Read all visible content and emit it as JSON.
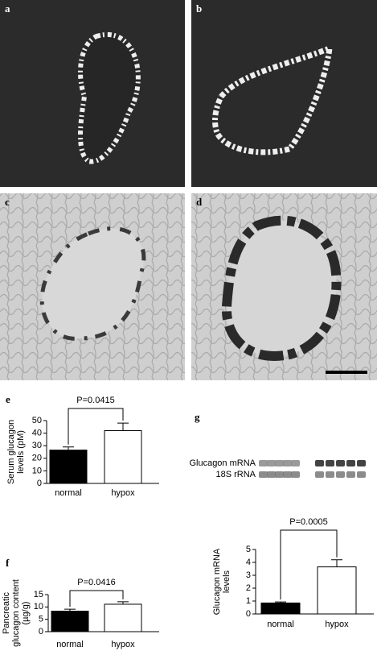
{
  "panels": {
    "labels": [
      "a",
      "b",
      "c",
      "d"
    ]
  },
  "chart_data": [
    {
      "type": "bar",
      "label": "e",
      "ylabel": [
        "Serum glucagon",
        "levels (pM)"
      ],
      "categories": [
        "normal",
        "hypox"
      ],
      "values": [
        26.5,
        42
      ],
      "errors": [
        2.5,
        6
      ],
      "colors": [
        "#000000",
        "#ffffff"
      ],
      "annotation": "P=0.0415",
      "ylim": [
        0,
        50
      ],
      "yticks": [
        0,
        10,
        20,
        30,
        40,
        50
      ]
    },
    {
      "type": "bar",
      "label": "f",
      "ylabel": [
        "Pancreatic",
        "glucagon content",
        "(µg/g)"
      ],
      "categories": [
        "normal",
        "hypox"
      ],
      "values": [
        8.3,
        11.1
      ],
      "errors": [
        0.8,
        1.0
      ],
      "colors": [
        "#000000",
        "#ffffff"
      ],
      "annotation": "P=0.0416",
      "ylim": [
        0,
        15
      ],
      "yticks": [
        0,
        5,
        10,
        15
      ]
    },
    {
      "type": "bar",
      "label": "g",
      "ylabel": [
        "Glucagon mRNA",
        "levels"
      ],
      "blot": {
        "rows": [
          "Glucagon mRNA",
          "18S rRNA"
        ]
      },
      "categories": [
        "normal",
        "hypox"
      ],
      "values": [
        0.85,
        3.65
      ],
      "errors": [
        0.08,
        0.55
      ],
      "colors": [
        "#000000",
        "#ffffff"
      ],
      "annotation": "P=0.0005",
      "ylim": [
        0,
        5
      ],
      "yticks": [
        0,
        1,
        2,
        3,
        4,
        5
      ]
    }
  ]
}
